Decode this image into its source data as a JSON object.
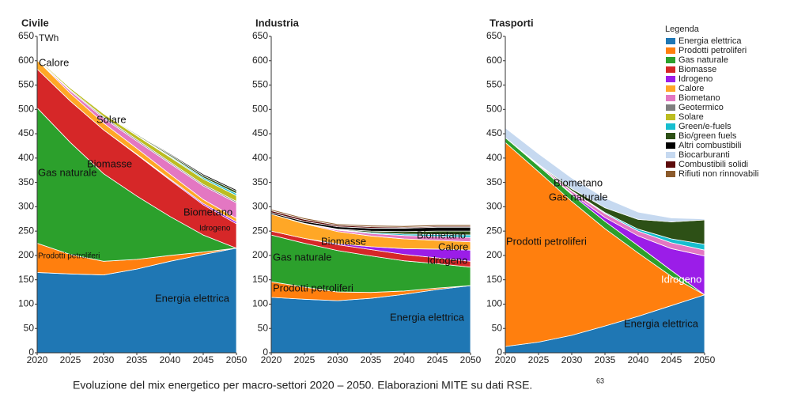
{
  "chart_data": [
    {
      "type": "area",
      "stacked": true,
      "title": "Civile",
      "ylabel": "TWh",
      "x": [
        2020,
        2025,
        2030,
        2035,
        2040,
        2045,
        2050
      ],
      "ylim": [
        0,
        650
      ],
      "yticks": [
        0,
        50,
        100,
        150,
        200,
        250,
        300,
        350,
        400,
        450,
        500,
        550,
        600,
        650
      ],
      "series": [
        {
          "name": "Energia elettrica",
          "color": "#1f77b4",
          "values": [
            165,
            162,
            160,
            172,
            188,
            202,
            215
          ]
        },
        {
          "name": "Prodotti petroliferi",
          "color": "#ff7f0e",
          "values": [
            60,
            40,
            28,
            20,
            12,
            5,
            0
          ]
        },
        {
          "name": "Gas naturale",
          "color": "#2ca02c",
          "values": [
            278,
            230,
            180,
            130,
            80,
            35,
            0
          ]
        },
        {
          "name": "Biomasse",
          "color": "#d62728",
          "values": [
            80,
            85,
            90,
            85,
            75,
            62,
            50
          ]
        },
        {
          "name": "Idrogeno",
          "color": "#9b1de8",
          "values": [
            0,
            0,
            0,
            1,
            2,
            3,
            4
          ]
        },
        {
          "name": "Calore",
          "color": "#ffa726",
          "values": [
            18,
            16,
            14,
            12,
            10,
            8,
            7
          ]
        },
        {
          "name": "Biometano",
          "color": "#e377c2",
          "values": [
            0,
            5,
            10,
            15,
            22,
            28,
            32
          ]
        },
        {
          "name": "Geotermico",
          "color": "#7f7f7f",
          "values": [
            2,
            2,
            3,
            3,
            3,
            3,
            3
          ]
        },
        {
          "name": "Solare",
          "color": "#bcbd22",
          "values": [
            2,
            4,
            6,
            8,
            10,
            11,
            12
          ]
        },
        {
          "name": "Green/e-fuels",
          "color": "#17becf",
          "values": [
            0,
            0,
            0,
            1,
            2,
            3,
            4
          ]
        },
        {
          "name": "Bio/green fuels",
          "color": "#2d5016",
          "values": [
            0,
            0,
            1,
            2,
            3,
            4,
            5
          ]
        },
        {
          "name": "Altri combustibili",
          "color": "#000000",
          "values": [
            0,
            0,
            0,
            1,
            2,
            3,
            3
          ]
        }
      ],
      "annotations": [
        "Calore",
        "Solare",
        "Biomasse",
        "Gas naturale",
        "Biometano",
        "Idrogeno",
        "Prodotti petroliferi",
        "Energia elettrica"
      ]
    },
    {
      "type": "area",
      "stacked": true,
      "title": "Industria",
      "x": [
        2020,
        2025,
        2030,
        2035,
        2040,
        2045,
        2050
      ],
      "ylim": [
        0,
        650
      ],
      "yticks": [
        0,
        50,
        100,
        150,
        200,
        250,
        300,
        350,
        400,
        450,
        500,
        550,
        600,
        650
      ],
      "series": [
        {
          "name": "Energia elettrica",
          "color": "#1f77b4",
          "values": [
            114,
            110,
            107,
            112,
            120,
            130,
            138
          ]
        },
        {
          "name": "Prodotti petroliferi",
          "color": "#ff7f0e",
          "values": [
            32,
            25,
            18,
            12,
            7,
            3,
            0
          ]
        },
        {
          "name": "Gas naturale",
          "color": "#2ca02c",
          "values": [
            96,
            90,
            85,
            75,
            62,
            50,
            38
          ]
        },
        {
          "name": "Biomasse",
          "color": "#d62728",
          "values": [
            8,
            10,
            12,
            13,
            13,
            12,
            12
          ]
        },
        {
          "name": "Idrogeno",
          "color": "#9b1de8",
          "values": [
            0,
            0,
            2,
            6,
            12,
            18,
            23
          ]
        },
        {
          "name": "Calore",
          "color": "#ffa726",
          "values": [
            35,
            30,
            25,
            22,
            20,
            18,
            17
          ]
        },
        {
          "name": "Biometano",
          "color": "#e377c2",
          "values": [
            0,
            1,
            3,
            5,
            7,
            8,
            9
          ]
        },
        {
          "name": "Green/e-fuels",
          "color": "#17becf",
          "values": [
            0,
            0,
            1,
            2,
            3,
            4,
            5
          ]
        },
        {
          "name": "Bio/green fuels",
          "color": "#2d5016",
          "values": [
            0,
            0,
            1,
            3,
            5,
            7,
            8
          ]
        },
        {
          "name": "Altri combustibili",
          "color": "#000000",
          "values": [
            3,
            4,
            5,
            6,
            7,
            8,
            8
          ]
        },
        {
          "name": "Combustibili solidi",
          "color": "#5c0a0a",
          "values": [
            4,
            4,
            3,
            3,
            2,
            2,
            2
          ]
        },
        {
          "name": "Rifiuti non rinnovabili",
          "color": "#8b5a2b",
          "values": [
            3,
            3,
            3,
            3,
            3,
            3,
            3
          ]
        }
      ],
      "annotations": [
        "Biomasse",
        "Gas naturale",
        "Prodotti petroliferi",
        "Energia elettrica",
        "Biometano",
        "Calore",
        "Idrogeno"
      ]
    },
    {
      "type": "area",
      "stacked": true,
      "title": "Trasporti",
      "x": [
        2020,
        2025,
        2030,
        2035,
        2040,
        2045,
        2050
      ],
      "ylim": [
        0,
        650
      ],
      "yticks": [
        0,
        50,
        100,
        150,
        200,
        250,
        300,
        350,
        400,
        450,
        500,
        550,
        600,
        650
      ],
      "series": [
        {
          "name": "Energia elettrica",
          "color": "#1f77b4",
          "values": [
            13,
            22,
            36,
            55,
            75,
            97,
            119
          ]
        },
        {
          "name": "Prodotti petroliferi",
          "color": "#ff7f0e",
          "values": [
            419,
            350,
            275,
            200,
            130,
            60,
            0
          ]
        },
        {
          "name": "Gas naturale",
          "color": "#2ca02c",
          "values": [
            10,
            12,
            14,
            15,
            15,
            12,
            0
          ]
        },
        {
          "name": "Idrogeno",
          "color": "#9b1de8",
          "values": [
            0,
            0,
            2,
            8,
            20,
            45,
            80
          ]
        },
        {
          "name": "Biometano",
          "color": "#e377c2",
          "values": [
            0,
            2,
            5,
            8,
            10,
            12,
            12
          ]
        },
        {
          "name": "Green/e-fuels",
          "color": "#17becf",
          "values": [
            0,
            0,
            1,
            2,
            4,
            8,
            12
          ]
        },
        {
          "name": "Bio/green fuels",
          "color": "#2d5016",
          "values": [
            0,
            1,
            4,
            10,
            20,
            35,
            50
          ]
        },
        {
          "name": "Biocarburanti",
          "color": "#c6d9f0",
          "values": [
            20,
            22,
            22,
            20,
            15,
            8,
            2
          ]
        }
      ],
      "annotations": [
        "Biometano",
        "Gas naturale",
        "Prodotti petroliferi",
        "Idrogeno",
        "Energia elettrica"
      ]
    }
  ],
  "legend": {
    "title": "Legenda",
    "items": [
      {
        "name": "Energia elettrica",
        "color": "#1f77b4"
      },
      {
        "name": "Prodotti petroliferi",
        "color": "#ff7f0e"
      },
      {
        "name": "Gas naturale",
        "color": "#2ca02c"
      },
      {
        "name": "Biomasse",
        "color": "#d62728"
      },
      {
        "name": "Idrogeno",
        "color": "#9b1de8"
      },
      {
        "name": "Calore",
        "color": "#ffa726"
      },
      {
        "name": "Biometano",
        "color": "#e377c2"
      },
      {
        "name": "Geotermico",
        "color": "#7f7f7f"
      },
      {
        "name": "Solare",
        "color": "#bcbd22"
      },
      {
        "name": "Green/e-fuels",
        "color": "#17becf"
      },
      {
        "name": "Bio/green fuels",
        "color": "#2d5016"
      },
      {
        "name": "Altri combustibili",
        "color": "#000000"
      },
      {
        "name": "Biocarburanti",
        "color": "#c6d9f0"
      },
      {
        "name": "Combustibili solidi",
        "color": "#5c0a0a"
      },
      {
        "name": "Rifiuti non rinnovabili",
        "color": "#8b5a2b"
      }
    ]
  },
  "caption": "Evoluzione del mix energetico per macro-settori 2020 – 2050. Elaborazioni MITE su dati RSE.",
  "footnote": "63"
}
